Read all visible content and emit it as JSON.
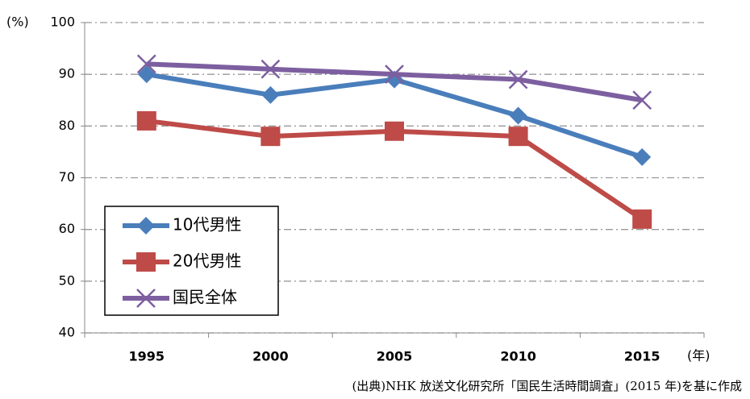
{
  "chart_data": {
    "type": "line",
    "y_unit": "(%)",
    "x_unit": "(年)",
    "source": "(出典)NHK 放送文化研究所「国民生活時間調査」(2015 年)を基に作成",
    "categories": [
      "1995",
      "2000",
      "2005",
      "2010",
      "2015"
    ],
    "series": [
      {
        "name": "10代男性",
        "color": "#4a7ebb",
        "marker": "diamond",
        "values": [
          90,
          86,
          89,
          82,
          74
        ]
      },
      {
        "name": "20代男性",
        "color": "#be4b48",
        "marker": "square",
        "values": [
          81,
          78,
          79,
          78,
          62
        ]
      },
      {
        "name": "国民全体",
        "color": "#7d5fa0",
        "marker": "x",
        "values": [
          92,
          91,
          90,
          89,
          85
        ]
      }
    ],
    "ylim": [
      40,
      100
    ],
    "yticks": [
      40,
      50,
      60,
      70,
      80,
      90,
      100
    ],
    "grid": true,
    "legend": "lower left"
  }
}
